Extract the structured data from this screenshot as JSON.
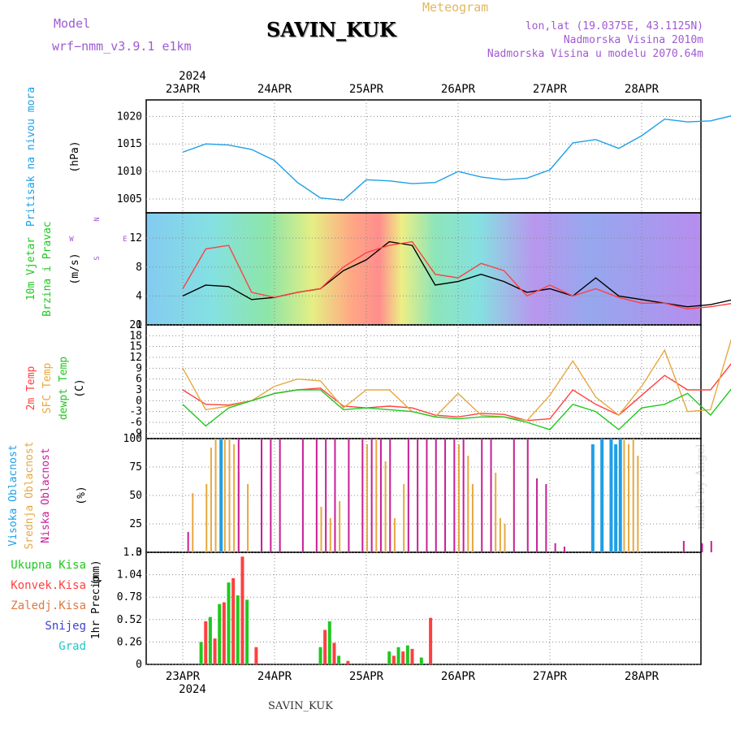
{
  "header": {
    "model_label": "Model",
    "model_version": "wrf−nmm_v3.9.1  e1km",
    "station": "SAVIN_KUK",
    "subtitle": "Meteogram",
    "lonlat": "lon,lat (19.0375E, 43.1125N)",
    "elevation": "Nadmorska Visina 2010m",
    "model_elevation": "Nadmorska Visina u modelu 2070.64m"
  },
  "footer": {
    "station": "SAVIN_KUK",
    "credit": "made by Angel"
  },
  "chart_data": [
    {
      "type": "line",
      "panel": "pressure",
      "ylabel": "Pritisak na nivou mora",
      "unit": "(hPa)",
      "x_ticks": [
        "23APR",
        "24APR",
        "25APR",
        "26APR",
        "27APR",
        "28APR"
      ],
      "x_year": "2024",
      "yticks": [
        1005,
        1010,
        1015,
        1020
      ],
      "ylim": [
        1002.5,
        1023
      ],
      "color": "#1ea0e6",
      "x": [
        0,
        0.25,
        0.5,
        0.75,
        1,
        1.25,
        1.5,
        1.75,
        2,
        2.25,
        2.5,
        2.75,
        3,
        3.25,
        3.5,
        3.75,
        4,
        4.25,
        4.5,
        4.75,
        5,
        5.25,
        5.5,
        5.75,
        6
      ],
      "values": [
        1013.5,
        1015,
        1014.8,
        1014,
        1012,
        1008,
        1005.2,
        1004.8,
        1008.5,
        1008.3,
        1007.8,
        1008,
        1010,
        1009,
        1008.5,
        1008.8,
        1010.3,
        1015.2,
        1015.8,
        1014.2,
        1016.5,
        1019.5,
        1019,
        1019.2,
        1020.2
      ]
    },
    {
      "type": "line",
      "panel": "wind",
      "ylabel": [
        "10m Vjetar",
        "Brzina i Pravac"
      ],
      "unit": "(m/s)",
      "compass": {
        "n": "N",
        "s": "S",
        "e": "E",
        "w": "W"
      },
      "yticks": [
        0,
        4,
        8,
        12
      ],
      "ylim": [
        0,
        15.5
      ],
      "series": [
        {
          "x": [
            0,
            0.25,
            0.5,
            0.75,
            1,
            1.25,
            1.5,
            1.75,
            2,
            2.25,
            2.5,
            2.75,
            3,
            3.25,
            3.5,
            3.75,
            4,
            4.25,
            4.5,
            4.75,
            5,
            5.25,
            5.5,
            5.75,
            6
          ],
          "values": [
            4,
            5.5,
            5.3,
            3.5,
            3.8,
            4.5,
            5,
            7.5,
            9,
            11.5,
            11,
            5.5,
            6,
            7,
            6,
            4.5,
            5,
            4,
            6.5,
            4,
            3.5,
            3,
            2.5,
            2.8,
            3.5
          ],
          "color": "#000000"
        },
        {
          "x": [
            0,
            0.25,
            0.5,
            0.75,
            1,
            1.25,
            1.5,
            1.75,
            2,
            2.25,
            2.5,
            2.75,
            3,
            3.25,
            3.5,
            3.75,
            4,
            4.25,
            4.5,
            4.75,
            5,
            5.25,
            5.5,
            5.75,
            6
          ],
          "values": [
            5,
            10.5,
            11,
            4.5,
            3.8,
            4.5,
            5,
            8,
            10,
            11,
            11.5,
            7,
            6.5,
            8.5,
            7.5,
            4,
            5.5,
            4,
            5,
            3.8,
            3,
            3,
            2.2,
            2.5,
            3
          ],
          "color": "#ff4040"
        }
      ]
    },
    {
      "type": "line",
      "panel": "temperature",
      "ylabel": [
        "2m Temp",
        "SFC Temp",
        "dewpt Temp"
      ],
      "unit": "(C)",
      "yticks": [
        -9,
        -6,
        -3,
        0,
        3,
        6,
        9,
        12,
        15,
        18,
        21
      ],
      "ylim": [
        -10.5,
        21
      ],
      "series": [
        {
          "name": "2m Temp",
          "color": "#ff4040",
          "x": [
            0,
            0.25,
            0.5,
            0.75,
            1,
            1.25,
            1.5,
            1.75,
            2,
            2.25,
            2.5,
            2.75,
            3,
            3.25,
            3.5,
            3.75,
            4,
            4.25,
            4.5,
            4.75,
            5,
            5.25,
            5.5,
            5.75,
            6
          ],
          "values": [
            3,
            -1,
            -1.2,
            0,
            2,
            3,
            3.5,
            -1.5,
            -2,
            -1.5,
            -2,
            -4,
            -4.5,
            -3.5,
            -3.8,
            -5.5,
            -5,
            3,
            -1,
            -4,
            1.5,
            7,
            3,
            3,
            11
          ]
        },
        {
          "name": "SFC Temp",
          "color": "#e6a840",
          "x": [
            0,
            0.25,
            0.5,
            0.75,
            1,
            1.25,
            1.5,
            1.75,
            2,
            2.25,
            2.5,
            2.75,
            3,
            3.25,
            3.5,
            3.75,
            4,
            4.25,
            4.5,
            4.75,
            5,
            5.25,
            5.5,
            5.75,
            6
          ],
          "values": [
            9,
            -2.5,
            -1.5,
            0,
            4,
            6,
            5.5,
            -2,
            3,
            3,
            -3,
            -4.5,
            2,
            -4,
            -4.5,
            -5.5,
            1.5,
            11,
            1,
            -4,
            4,
            14,
            -3,
            -2.5,
            19
          ]
        },
        {
          "name": "dewpt Temp",
          "color": "#20c820",
          "x": [
            0,
            0.25,
            0.5,
            0.75,
            1,
            1.25,
            1.5,
            1.75,
            2,
            2.25,
            2.5,
            2.75,
            3,
            3.25,
            3.5,
            3.75,
            4,
            4.25,
            4.5,
            4.75,
            5,
            5.25,
            5.5,
            5.75,
            6
          ],
          "values": [
            -1,
            -7,
            -2,
            0,
            2,
            3,
            3,
            -2.5,
            -2,
            -2.5,
            -3,
            -4.5,
            -5,
            -4.5,
            -4.5,
            -6,
            -8,
            -1,
            -3,
            -8,
            -2,
            -1,
            2,
            -4,
            4
          ]
        }
      ]
    },
    {
      "type": "bar",
      "panel": "cloud",
      "ylabel": [
        "Visoka Oblacnost",
        "Srednja Oblacnost",
        "Niska Oblacnost"
      ],
      "unit": "(%)",
      "yticks": [
        0,
        25,
        50,
        75,
        100
      ],
      "ylim": [
        0,
        100
      ],
      "series": [
        {
          "name": "Visoka Oblacnost",
          "color": "#1ea0e6",
          "x": [
            0.4,
            4.45,
            4.55,
            4.65,
            4.7,
            4.75
          ],
          "values": [
            100,
            95,
            100,
            100,
            95,
            100
          ]
        },
        {
          "name": "Srednja Oblacnost",
          "color": "#e6a840",
          "x": [
            0.1,
            0.25,
            0.3,
            0.35,
            0.45,
            0.5,
            0.55,
            0.6,
            0.7,
            1.5,
            1.6,
            1.7,
            2.0,
            2.1,
            2.2,
            2.3,
            2.4,
            3.0,
            3.1,
            3.15,
            3.4,
            3.45,
            3.5,
            4.8,
            4.85,
            4.9,
            4.95
          ],
          "values": [
            52,
            60,
            92,
            100,
            100,
            100,
            95,
            70,
            60,
            40,
            30,
            45,
            95,
            100,
            80,
            30,
            60,
            95,
            85,
            60,
            70,
            30,
            25,
            100,
            95,
            100,
            85
          ]
        },
        {
          "name": "Niska Oblacnost",
          "color": "#c81e96",
          "x": [
            0.05,
            0.6,
            0.85,
            0.95,
            1.05,
            1.3,
            1.45,
            1.55,
            1.65,
            1.8,
            1.95,
            2.05,
            2.15,
            2.25,
            2.45,
            2.55,
            2.65,
            2.75,
            2.85,
            2.95,
            3.05,
            3.25,
            3.35,
            3.6,
            3.75,
            3.85,
            3.95,
            4.05,
            4.15,
            5.45,
            5.65,
            5.75
          ],
          "values": [
            18,
            100,
            100,
            100,
            100,
            100,
            100,
            100,
            100,
            100,
            100,
            100,
            100,
            100,
            100,
            100,
            100,
            100,
            100,
            100,
            100,
            100,
            100,
            100,
            100,
            65,
            60,
            8,
            5,
            10,
            8,
            10
          ]
        }
      ]
    },
    {
      "type": "bar",
      "panel": "precipitation",
      "ylabel": "1hr Precip",
      "unit": "(mm)",
      "yticks": [
        0,
        0.26,
        0.52,
        0.78,
        1.04,
        1.3
      ],
      "ylim": [
        0,
        1.3
      ],
      "legend": [
        "Ukupna Kisa",
        "Konvek.Kisa",
        "Zaledj.Kisa",
        "Snijeg",
        "Grad"
      ],
      "legend_colors": [
        "#20c820",
        "#ff4040",
        "#e07840",
        "#4040d0",
        "#20c8c8"
      ],
      "x": [
        0.2,
        0.25,
        0.3,
        0.35,
        0.4,
        0.45,
        0.5,
        0.55,
        0.6,
        0.65,
        0.7,
        0.8,
        1.5,
        1.55,
        1.6,
        1.65,
        1.7,
        1.8,
        2.25,
        2.3,
        2.35,
        2.4,
        2.45,
        2.5,
        2.6,
        2.7
      ],
      "values": [
        0.26,
        0.5,
        0.55,
        0.3,
        0.7,
        0.72,
        0.95,
        1.0,
        0.8,
        1.25,
        0.75,
        0.2,
        0.2,
        0.4,
        0.5,
        0.25,
        0.1,
        0.04,
        0.15,
        0.1,
        0.2,
        0.15,
        0.22,
        0.18,
        0.08,
        0.54
      ]
    }
  ]
}
